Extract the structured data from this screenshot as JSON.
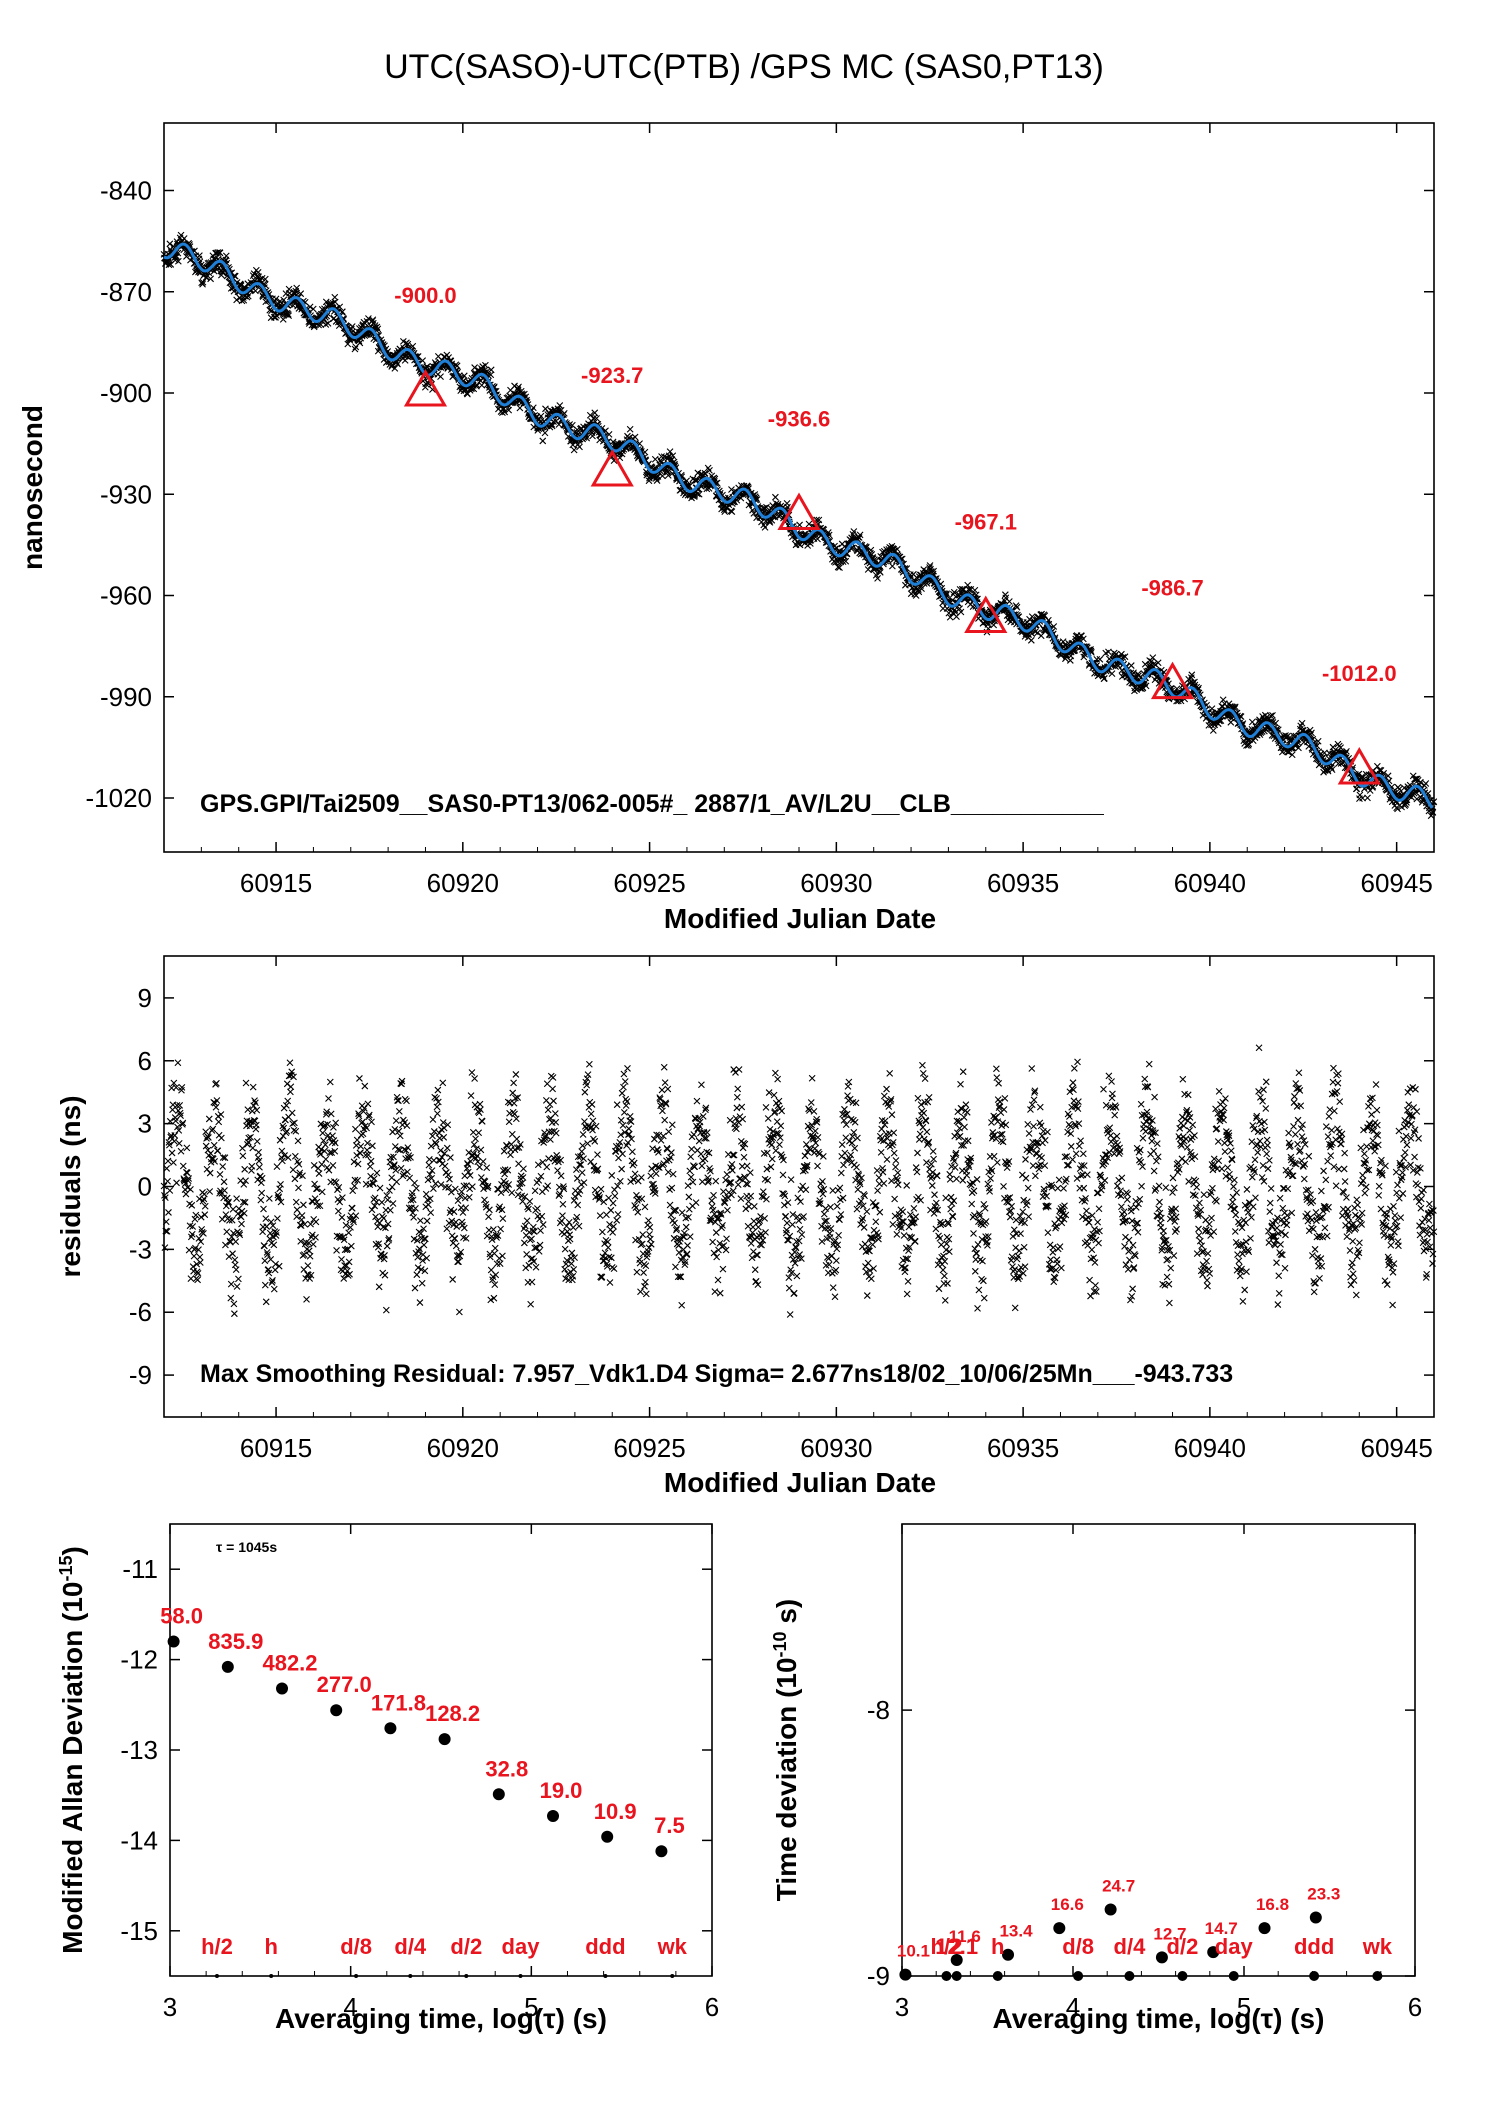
{
  "colors": {
    "points": "#000000",
    "fit": "#1f7fd6",
    "marker": "#e8141e",
    "text": "#000000"
  },
  "chart_data": [
    {
      "type": "scatter",
      "title": "UTC(SASO)-UTC(PTB)  /GPS  MC  (SAS0,PT13)",
      "xlabel": "Modified Julian Date",
      "ylabel": "nanosecond",
      "xlim": [
        60912,
        60946
      ],
      "ylim": [
        -1036,
        -820
      ],
      "xticks": [
        60915,
        60920,
        60925,
        60930,
        60935,
        60940,
        60945
      ],
      "yticks": [
        -840,
        -870,
        -900,
        -930,
        -960,
        -990,
        -1020
      ],
      "xtick_labels": [
        "60915",
        "60920",
        "60925",
        "60930",
        "60935",
        "60940",
        "60945"
      ],
      "ytick_labels": [
        "-840",
        "-870",
        "-900",
        "-930",
        "-960",
        "-990",
        "-1020"
      ],
      "trend": {
        "x": [
          60912,
          60946
        ],
        "y": [
          -857,
          -1022
        ]
      },
      "smoothing_curve": true,
      "markers": [
        {
          "x": 60919,
          "y": -900.0,
          "label": "-900.0"
        },
        {
          "x": 60924,
          "y": -923.7,
          "label": "-923.7"
        },
        {
          "x": 60929,
          "y": -936.6,
          "label": "-936.6"
        },
        {
          "x": 60934,
          "y": -967.1,
          "label": "-967.1"
        },
        {
          "x": 60939,
          "y": -986.7,
          "label": "-986.7"
        },
        {
          "x": 60944,
          "y": -1012.0,
          "label": "-1012.0"
        }
      ],
      "annotation": "GPS.GPI/Tai2509__SAS0-PT13/062-005#_  2887/1_AV/L2U__CLB___________"
    },
    {
      "type": "scatter",
      "xlabel": "Modified Julian Date",
      "ylabel": "residuals (ns)",
      "xlim": [
        60912,
        60946
      ],
      "ylim": [
        -11,
        11
      ],
      "xticks": [
        60915,
        60920,
        60925,
        60930,
        60935,
        60940,
        60945
      ],
      "yticks": [
        9,
        6,
        3,
        0,
        -3,
        -6,
        -9
      ],
      "xtick_labels": [
        "60915",
        "60920",
        "60925",
        "60930",
        "60935",
        "60940",
        "60945"
      ],
      "ytick_labels": [
        "9",
        "6",
        "3",
        "0",
        "-3",
        "-6",
        "-9"
      ],
      "sigma": 2.677,
      "max_residual": 7.957,
      "annotation": "Max Smoothing Residual: 7.957_Vdk1.D4  Sigma= 2.677ns18/02_10/06/25Mn___-943.733"
    },
    {
      "type": "scatter",
      "xlabel": "Averaging time, log(τ) (s)",
      "ylabel": "Modified Allan Deviation (10",
      "ylabel_sup": "-15",
      "ylabel_end": ")",
      "xlim": [
        3,
        6
      ],
      "ylim": [
        -15.5,
        -10.5
      ],
      "xticks": [
        3,
        4,
        5,
        6
      ],
      "yticks": [
        -11,
        -12,
        -13,
        -14,
        -15
      ],
      "xtick_labels": [
        "3",
        "4",
        "5",
        "6"
      ],
      "ytick_labels": [
        "-11",
        "-12",
        "-13",
        "-14",
        "-15"
      ],
      "tau_note": "τ = 1045s",
      "points": [
        {
          "x": 3.02,
          "y": -11.8,
          "label": "58.0"
        },
        {
          "x": 3.32,
          "y": -12.08,
          "label": "835.9"
        },
        {
          "x": 3.62,
          "y": -12.32,
          "label": "482.2"
        },
        {
          "x": 3.92,
          "y": -12.56,
          "label": "277.0"
        },
        {
          "x": 4.22,
          "y": -12.76,
          "label": "171.8"
        },
        {
          "x": 4.52,
          "y": -12.88,
          "label": "128.2"
        },
        {
          "x": 4.82,
          "y": -13.49,
          "label": "32.8"
        },
        {
          "x": 5.12,
          "y": -13.73,
          "label": "19.0"
        },
        {
          "x": 5.42,
          "y": -13.96,
          "label": "10.9"
        },
        {
          "x": 5.72,
          "y": -14.12,
          "label": "7.5"
        }
      ],
      "period_marks": [
        {
          "x": 3.26,
          "label": "h/2"
        },
        {
          "x": 3.56,
          "label": "h"
        },
        {
          "x": 4.03,
          "label": "d/8"
        },
        {
          "x": 4.33,
          "label": "d/4"
        },
        {
          "x": 4.64,
          "label": "d/2"
        },
        {
          "x": 4.94,
          "label": "day"
        },
        {
          "x": 5.41,
          "label": "ddd"
        },
        {
          "x": 5.78,
          "label": "wk"
        }
      ]
    },
    {
      "type": "scatter",
      "xlabel": "Averaging time, log(τ) (s)",
      "ylabel": "Time deviation (10",
      "ylabel_sup": "-10",
      "ylabel_end": " s)",
      "xlim": [
        3,
        6
      ],
      "ylim": [
        -9,
        -7.3
      ],
      "xticks": [
        3,
        4,
        5,
        6
      ],
      "yticks": [
        -8,
        -9
      ],
      "xtick_labels": [
        "3",
        "4",
        "5",
        "6"
      ],
      "ytick_labels": [
        "-8",
        "-9"
      ],
      "points": [
        {
          "x": 3.02,
          "y": -8.995,
          "label": "10.1"
        },
        {
          "x": 3.32,
          "y": -8.94,
          "label": "11.6"
        },
        {
          "x": 3.62,
          "y": -8.92,
          "label": "13.4"
        },
        {
          "x": 3.92,
          "y": -8.82,
          "label": "16.6"
        },
        {
          "x": 4.22,
          "y": -8.75,
          "label": "24.7"
        },
        {
          "x": 4.52,
          "y": -8.93,
          "label": "12.7"
        },
        {
          "x": 4.82,
          "y": -8.91,
          "label": "14.7"
        },
        {
          "x": 5.12,
          "y": -8.82,
          "label": "16.8"
        },
        {
          "x": 5.42,
          "y": -8.78,
          "label": "23.3"
        }
      ],
      "period_marks": [
        {
          "x": 3.26,
          "label": "h/2"
        },
        {
          "x": 3.32,
          "label": "12.1"
        },
        {
          "x": 3.56,
          "label": "h"
        },
        {
          "x": 4.03,
          "label": "d/8"
        },
        {
          "x": 4.33,
          "label": "d/4"
        },
        {
          "x": 4.64,
          "label": "d/2"
        },
        {
          "x": 4.94,
          "label": "day"
        },
        {
          "x": 5.41,
          "label": "ddd"
        },
        {
          "x": 5.78,
          "label": "wk"
        }
      ]
    }
  ]
}
